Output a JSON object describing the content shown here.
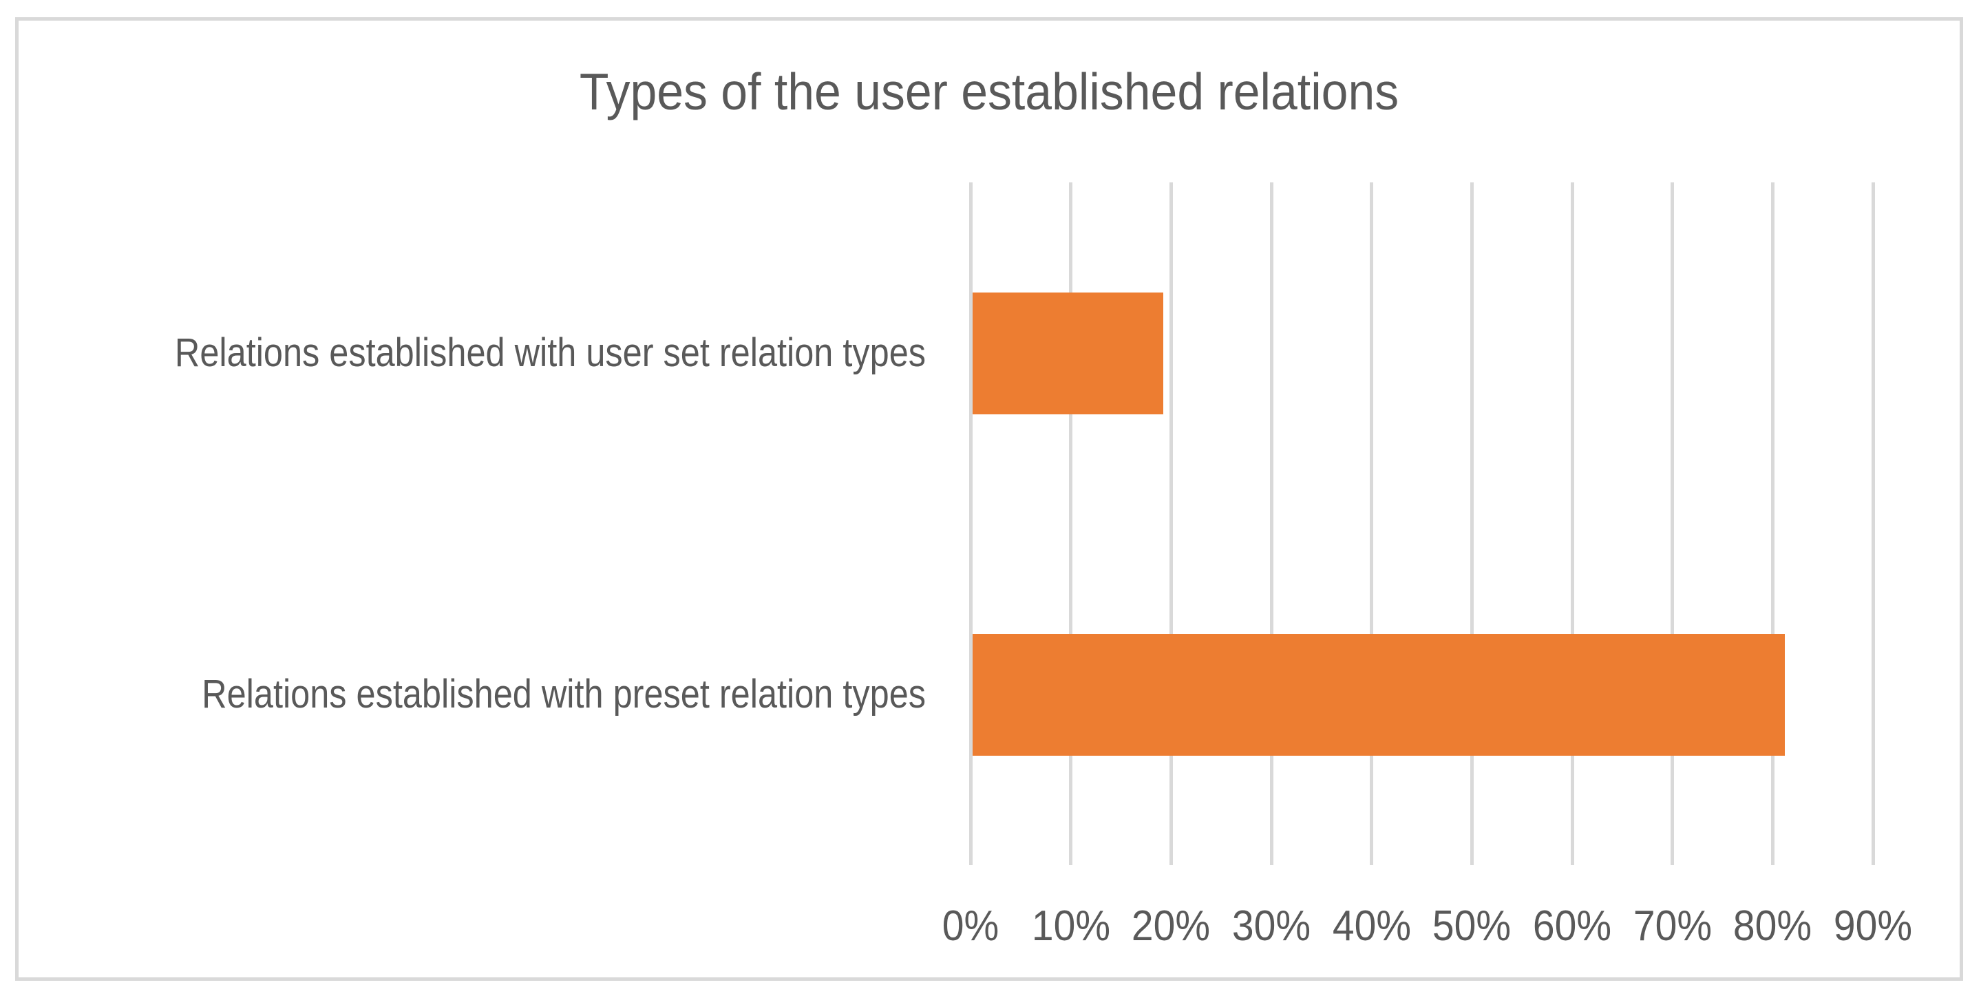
{
  "chart_data": {
    "type": "bar",
    "orientation": "horizontal",
    "title": "Types of the user established relations",
    "categories": [
      "Relations established with user set relation types",
      "Relations established with preset relation types"
    ],
    "values": [
      19,
      81
    ],
    "value_unit": "%",
    "xlabel": "",
    "ylabel": "",
    "xlim": [
      0,
      90
    ],
    "x_ticks": [
      "0%",
      "10%",
      "20%",
      "30%",
      "40%",
      "50%",
      "60%",
      "70%",
      "80%",
      "90%"
    ],
    "grid": true,
    "legend": false,
    "colors": {
      "bar": "#ED7D31",
      "gridline": "#D9D9D9",
      "frame_border": "#D9D9D9",
      "text": "#595959",
      "background": "#FFFFFF"
    }
  }
}
